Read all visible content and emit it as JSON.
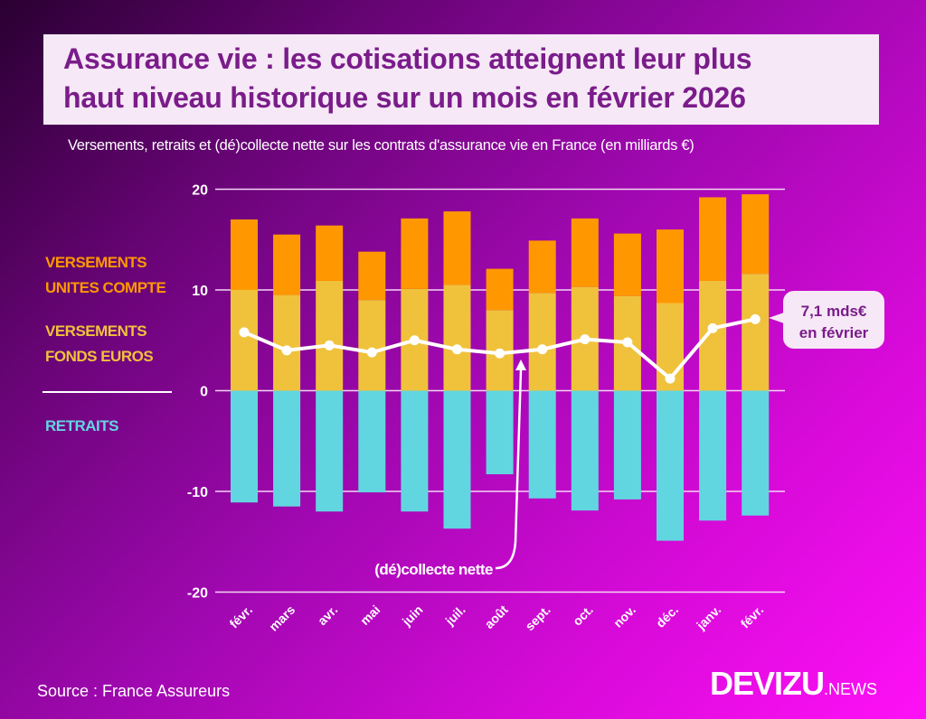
{
  "title": {
    "line1": "Assurance vie : les cotisations atteignent leur plus",
    "line2": "haut niveau historique sur un mois en février 2026"
  },
  "subtitle": "Versements, retraits et (dé)collecte nette sur les contrats d'assurance vie en France (en milliards €)",
  "legend": {
    "uc_line1": "VERSEMENTS",
    "uc_line2": "UNITES COMPTE",
    "euro_line1": "VERSEMENTS",
    "euro_line2": "FONDS EUROS",
    "retraits": "RETRAITS"
  },
  "annotations": {
    "net_label": "(dé)collecte nette",
    "callout_line1": "7,1 mds€",
    "callout_line2": "en février"
  },
  "source": "Source : France Assureurs",
  "logo": {
    "main": "DEVIZU",
    "suffix": ".NEWS"
  },
  "colors": {
    "unites_compte": "#ff9800",
    "fonds_euros": "#f0c23c",
    "retraits": "#62d6e0",
    "net_line": "#ffffff",
    "title_text": "#7a1c8a"
  },
  "chart_data": {
    "type": "bar",
    "stacked": true,
    "categories": [
      "févr.",
      "mars",
      "avr.",
      "mai",
      "juin",
      "juil.",
      "août",
      "sept.",
      "oct.",
      "nov.",
      "déc.",
      "janv.",
      "févr."
    ],
    "yticks": [
      "20",
      "10",
      "0",
      "-10",
      "-20"
    ],
    "ylim": [
      -20,
      20
    ],
    "grid": true,
    "series": [
      {
        "name": "VERSEMENTS FONDS EUROS",
        "type": "bar",
        "values": [
          10.0,
          9.5,
          10.9,
          9.0,
          10.1,
          10.5,
          8.0,
          9.7,
          10.3,
          9.4,
          8.7,
          10.9,
          11.6
        ]
      },
      {
        "name": "VERSEMENTS UNITES COMPTE",
        "type": "bar",
        "values": [
          7.0,
          6.0,
          5.5,
          4.8,
          7.0,
          7.3,
          4.1,
          5.2,
          6.8,
          6.2,
          7.3,
          8.3,
          7.9
        ]
      },
      {
        "name": "RETRAITS",
        "type": "bar",
        "values": [
          -11.1,
          -11.5,
          -12.0,
          -10.1,
          -12.0,
          -13.7,
          -8.3,
          -10.7,
          -11.9,
          -10.8,
          -14.9,
          -12.9,
          -12.4
        ]
      },
      {
        "name": "(dé)collecte nette",
        "type": "line",
        "values": [
          5.8,
          4.0,
          4.5,
          3.8,
          5.0,
          4.1,
          3.7,
          4.1,
          5.1,
          4.8,
          1.2,
          6.2,
          7.1
        ]
      }
    ]
  }
}
